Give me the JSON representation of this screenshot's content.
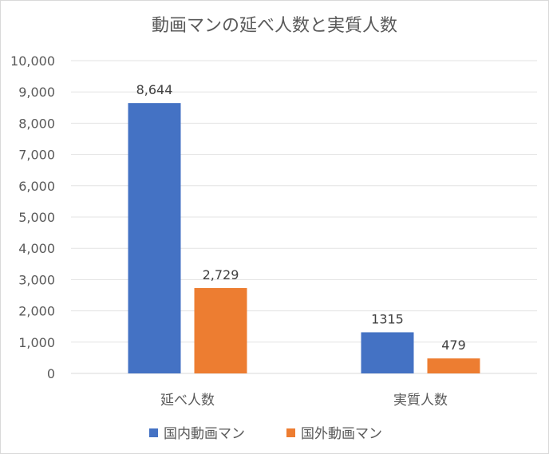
{
  "chart_data": {
    "type": "bar",
    "title": "動画マンの延べ人数と実質人数",
    "categories": [
      "延べ人数",
      "実質人数"
    ],
    "series": [
      {
        "name": "国内動画マン",
        "color": "#4472c4",
        "values": [
          8644,
          1315
        ],
        "labels": [
          "8,644",
          "1315"
        ]
      },
      {
        "name": "国外動画マン",
        "color": "#ed7d31",
        "values": [
          2729,
          479
        ],
        "labels": [
          "2,729",
          "479"
        ]
      }
    ],
    "ylim": [
      0,
      10000
    ],
    "yticks": [
      "0",
      "1,000",
      "2,000",
      "3,000",
      "4,000",
      "5,000",
      "6,000",
      "7,000",
      "8,000",
      "9,000",
      "10,000"
    ],
    "xlabel": "",
    "ylabel": "",
    "grid": true,
    "legend_position": "bottom"
  }
}
